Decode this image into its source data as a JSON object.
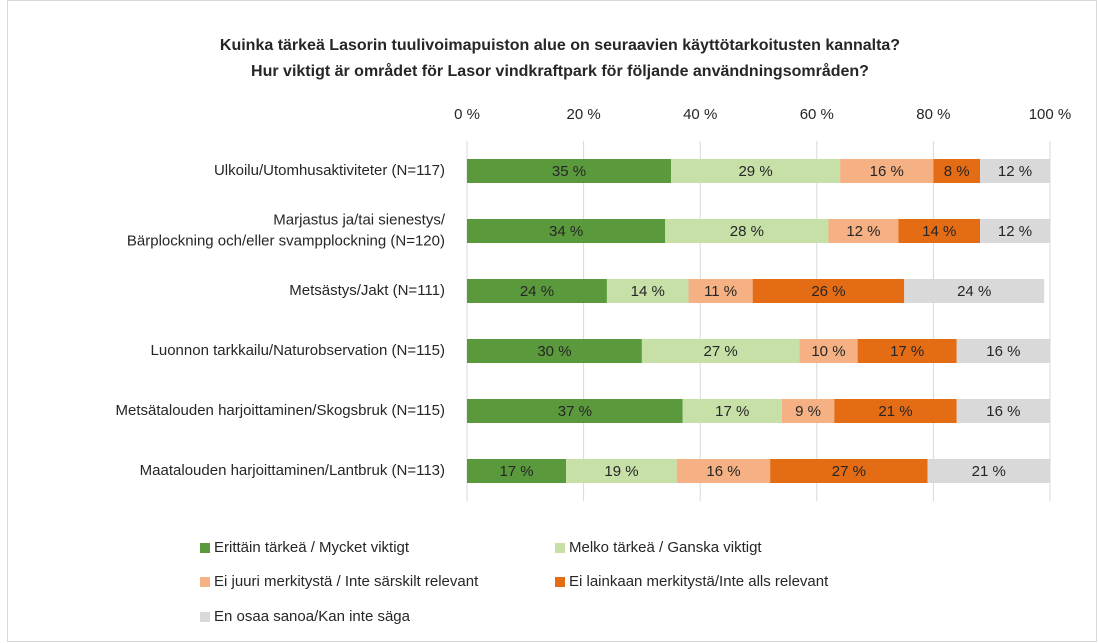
{
  "chart_data": {
    "type": "stacked-bar-horizontal",
    "title": "Kuinka tärkeä Lasorin tuulivoimapuiston alue on seuraavien käyttötarkoitusten kannalta?",
    "subtitle": "Hur viktigt är området för Lasor vindkraftpark för följande användningsområden?",
    "categories": [
      "Ulkoilu/Utomhusaktiviteter (N=117)",
      "Marjastus ja/tai sienestys/\nBärplockning och/eller svampplockning (N=120)",
      "Metsästys/Jakt (N=111)",
      "Luonnon tarkkailu/Naturobservation (N=115)",
      "Metsätalouden harjoittaminen/Skogsbruk (N=115)",
      "Maatalouden harjoittaminen/Lantbruk (N=113)"
    ],
    "series": [
      {
        "name": "Erittäin tärkeä / Mycket viktigt",
        "color": "#5b9a3c",
        "values": [
          35,
          34,
          24,
          30,
          37,
          17
        ],
        "value_labels": [
          "35 %",
          "34 %",
          "24 %",
          "30 %",
          "37 %",
          "17 %"
        ]
      },
      {
        "name": "Melko tärkeä / Ganska viktigt",
        "color": "#c6e0a7",
        "values": [
          29,
          28,
          14,
          27,
          17,
          19
        ],
        "value_labels": [
          "29 %",
          "28 %",
          "14 %",
          "27 %",
          "17 %",
          "19 %"
        ]
      },
      {
        "name": "Ei juuri merkitystä / Inte särskilt relevant",
        "color": "#f5b183",
        "values": [
          16,
          12,
          11,
          10,
          9,
          16
        ],
        "value_labels": [
          "16 %",
          "12 %",
          "11 %",
          "10 %",
          "9 %",
          "16 %"
        ]
      },
      {
        "name": "Ei lainkaan merkitystä/Inte alls relevant",
        "color": "#e46c14",
        "values": [
          8,
          14,
          26,
          17,
          21,
          27
        ],
        "value_labels": [
          "8 %",
          "14 %",
          "26 %",
          "17 %",
          "21 %",
          "27 %"
        ]
      },
      {
        "name": "En osaa sanoa/Kan inte säga",
        "color": "#d9d9d9",
        "values": [
          12,
          12,
          24,
          16,
          16,
          21
        ],
        "value_labels": [
          "12 %",
          "12 %",
          "24 %",
          "16 %",
          "16 %",
          "21 %"
        ]
      }
    ],
    "xlim": [
      0,
      100
    ],
    "xticks": [
      {
        "value": 0,
        "label": "0 %"
      },
      {
        "value": 20,
        "label": "20 %"
      },
      {
        "value": 40,
        "label": "40 %"
      },
      {
        "value": 60,
        "label": "60 %"
      },
      {
        "value": 80,
        "label": "80 %"
      },
      {
        "value": 100,
        "label": "100 %"
      }
    ],
    "grid": true
  }
}
